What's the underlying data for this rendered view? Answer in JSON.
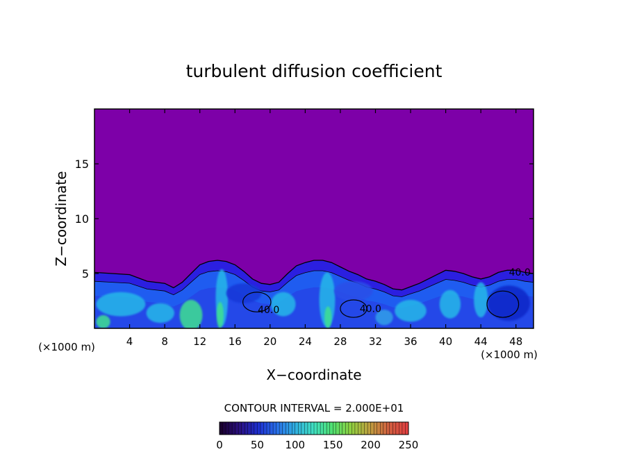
{
  "chart_data": {
    "type": "heatmap",
    "title": "turbulent diffusion coefficient",
    "xlabel": "X−coordinate",
    "ylabel": "Z−coordinate",
    "x_unit": "(×1000 m)",
    "x_unit_right": "(×1000 m)",
    "xlim": [
      0,
      50
    ],
    "ylim": [
      0,
      20
    ],
    "xticks": [
      4,
      8,
      12,
      16,
      20,
      24,
      28,
      32,
      36,
      40,
      44,
      48
    ],
    "yticks": [
      5,
      10,
      15
    ],
    "contour_interval_text": "CONTOUR INTERVAL = 2.000E+01",
    "contour_interval": 20,
    "contour_labels": [
      {
        "text": "40.0",
        "x": 18.6,
        "z": 1.4
      },
      {
        "text": "40.0",
        "x": 30.2,
        "z": 1.5
      },
      {
        "text": "40.0",
        "x": 47.2,
        "z": 4.8
      }
    ],
    "background_level": 0,
    "boundary_layer_top": [
      [
        0,
        5.1
      ],
      [
        2,
        5.0
      ],
      [
        4,
        4.9
      ],
      [
        6,
        4.3
      ],
      [
        8,
        4.1
      ],
      [
        9,
        3.7
      ],
      [
        10,
        4.2
      ],
      [
        11,
        5.0
      ],
      [
        12,
        5.8
      ],
      [
        13,
        6.1
      ],
      [
        14,
        6.2
      ],
      [
        15,
        6.1
      ],
      [
        16,
        5.8
      ],
      [
        17,
        5.2
      ],
      [
        18,
        4.5
      ],
      [
        19,
        4.1
      ],
      [
        20,
        4.0
      ],
      [
        21,
        4.2
      ],
      [
        22,
        5.0
      ],
      [
        23,
        5.7
      ],
      [
        24,
        6.0
      ],
      [
        25,
        6.2
      ],
      [
        26,
        6.2
      ],
      [
        27,
        6.0
      ],
      [
        28,
        5.6
      ],
      [
        29,
        5.2
      ],
      [
        30,
        4.9
      ],
      [
        31,
        4.5
      ],
      [
        32,
        4.3
      ],
      [
        33,
        4.0
      ],
      [
        34,
        3.6
      ],
      [
        35,
        3.5
      ],
      [
        36,
        3.8
      ],
      [
        37,
        4.1
      ],
      [
        38,
        4.5
      ],
      [
        39,
        4.9
      ],
      [
        40,
        5.3
      ],
      [
        41,
        5.2
      ],
      [
        42,
        5.0
      ],
      [
        43,
        4.7
      ],
      [
        44,
        4.5
      ],
      [
        45,
        4.7
      ],
      [
        46,
        5.1
      ],
      [
        47,
        5.3
      ],
      [
        48,
        5.3
      ],
      [
        49,
        5.1
      ],
      [
        50,
        5.0
      ]
    ],
    "colorbar": {
      "ticks": [
        0,
        50,
        100,
        150,
        200,
        250
      ],
      "range": [
        0,
        250
      ],
      "colors": [
        "#1a0030",
        "#2a1080",
        "#1d2fd0",
        "#2a70e8",
        "#30b0e0",
        "#40e0c0",
        "#50e070",
        "#90d040",
        "#c0a040",
        "#d06040",
        "#e04040"
      ]
    },
    "colors": {
      "background_field": "#7d00a8",
      "low_field": "#2b1fe0",
      "mid_field": "#1f5cf0",
      "high_field": "#28b8e8",
      "peak_field": "#40e090"
    }
  }
}
